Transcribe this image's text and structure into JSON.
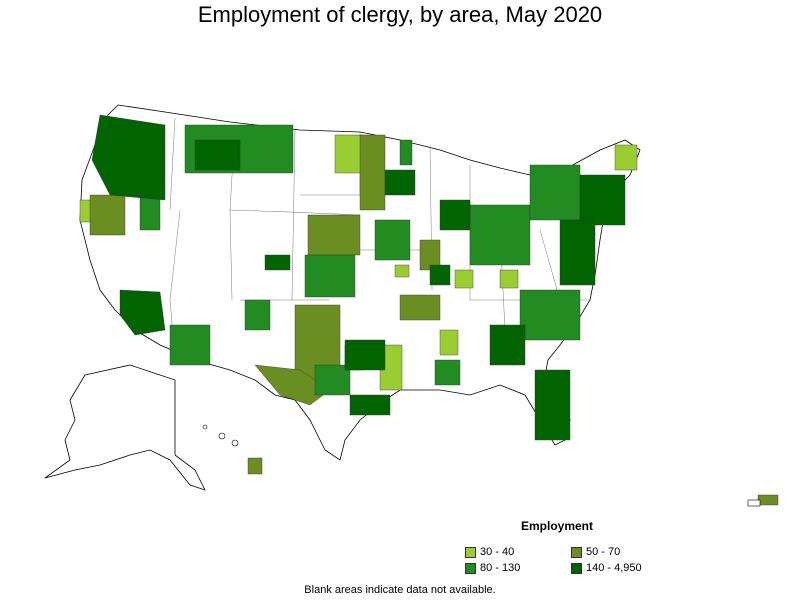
{
  "title": "Employment of clergy, by area, May 2020",
  "legend": {
    "title": "Employment",
    "items": [
      {
        "label": "30 - 40",
        "color": "#9acd32"
      },
      {
        "label": "50 - 70",
        "color": "#6b8e23"
      },
      {
        "label": "80 - 130",
        "color": "#228b22"
      },
      {
        "label": "140 - 4,950",
        "color": "#006400"
      }
    ]
  },
  "footnote": "Blank areas indicate data not available."
}
